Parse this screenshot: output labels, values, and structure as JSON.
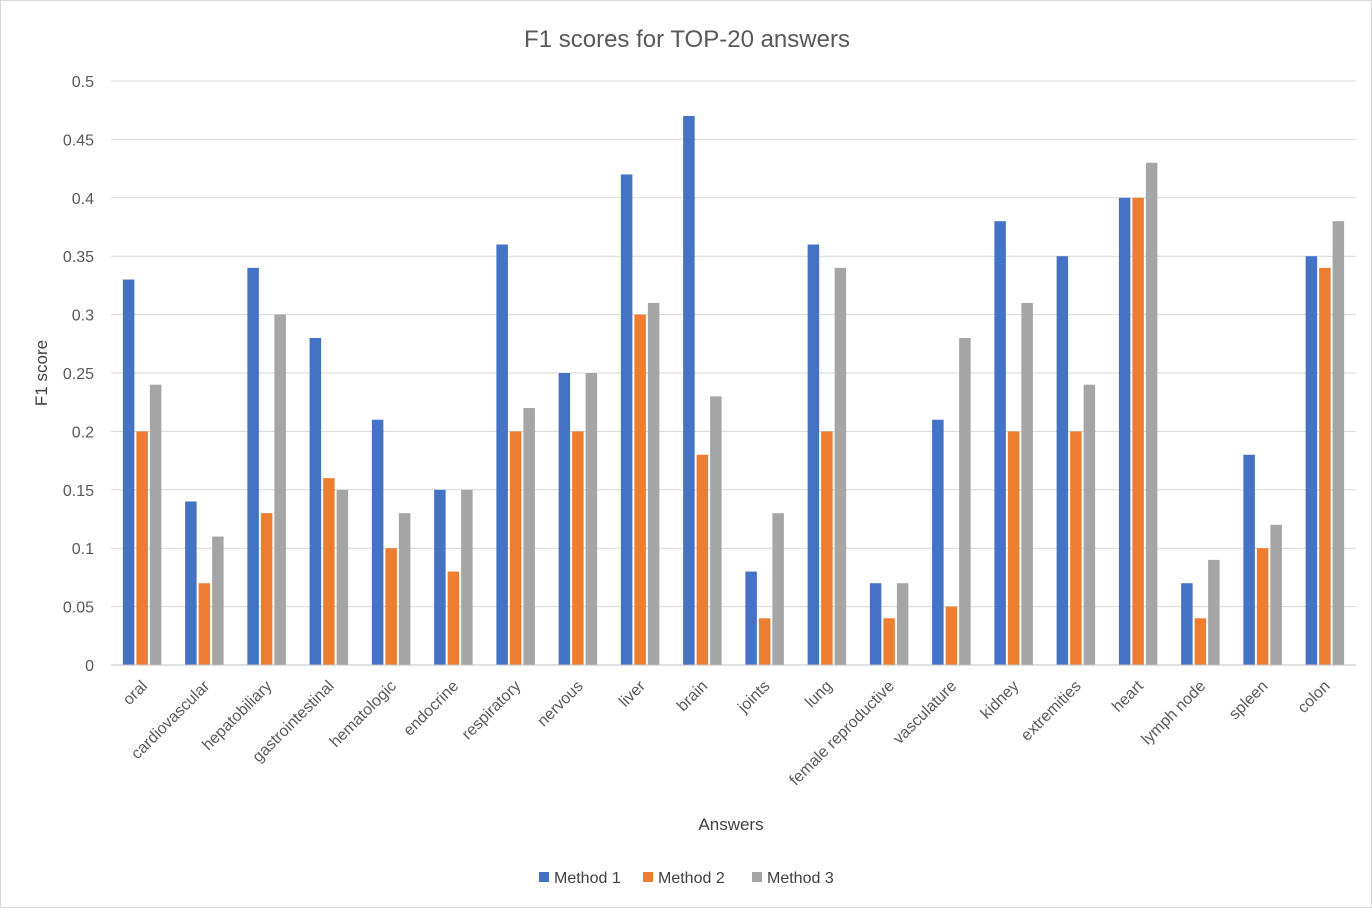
{
  "chart_data": {
    "type": "bar",
    "title": "F1 scores for TOP-20 answers",
    "xlabel": "Answers",
    "ylabel": "F1 score",
    "ylim": [
      0,
      0.5
    ],
    "yticks": [
      "0",
      "0.05",
      "0.1",
      "0.15",
      "0.2",
      "0.25",
      "0.3",
      "0.35",
      "0.4",
      "0.45",
      "0.5"
    ],
    "grid": true,
    "legend_position": "bottom",
    "categories": [
      "oral",
      "cardiovascular",
      "hepatobiliary",
      "gastrointestinal",
      "hematologic",
      "endocrine",
      "respiratory",
      "nervous",
      "liver",
      "brain",
      "joints",
      "lung",
      "female reproductive",
      "vasculature",
      "kidney",
      "extremities",
      "heart",
      "lymph node",
      "spleen",
      "colon"
    ],
    "series": [
      {
        "name": "Method 1",
        "color": "#4472c4",
        "values": [
          0.33,
          0.14,
          0.34,
          0.28,
          0.21,
          0.15,
          0.36,
          0.25,
          0.42,
          0.47,
          0.08,
          0.36,
          0.07,
          0.21,
          0.38,
          0.35,
          0.4,
          0.07,
          0.18,
          0.35
        ]
      },
      {
        "name": "Method 2",
        "color": "#ed7d31",
        "values": [
          0.2,
          0.07,
          0.13,
          0.16,
          0.1,
          0.08,
          0.2,
          0.2,
          0.3,
          0.18,
          0.04,
          0.2,
          0.04,
          0.05,
          0.2,
          0.2,
          0.4,
          0.04,
          0.1,
          0.34
        ]
      },
      {
        "name": "Method 3",
        "color": "#a5a5a5",
        "values": [
          0.24,
          0.11,
          0.3,
          0.15,
          0.13,
          0.15,
          0.22,
          0.25,
          0.31,
          0.23,
          0.13,
          0.34,
          0.07,
          0.28,
          0.31,
          0.24,
          0.43,
          0.09,
          0.12,
          0.38
        ]
      }
    ]
  }
}
